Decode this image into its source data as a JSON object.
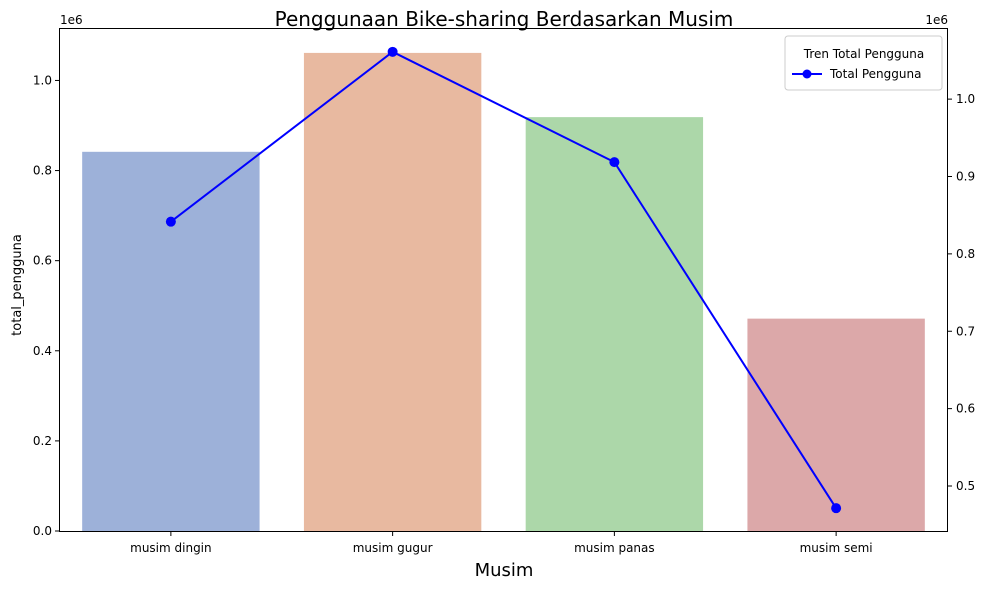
{
  "chart_data": {
    "type": "bar",
    "title": "Penggunaan Bike-sharing Berdasarkan Musim",
    "xlabel": "Musim",
    "ylabel": "total_pengguna",
    "categories": [
      "musim dingin",
      "musim gugur",
      "musim panas",
      "musim semi"
    ],
    "series": [
      {
        "axis": "left",
        "type": "bar",
        "values": [
          841613,
          1061129,
          918589,
          471348
        ],
        "colors": [
          "#9db1d9",
          "#e8b9a0",
          "#acd7a9",
          "#dca8a9"
        ]
      },
      {
        "name": "Total Pengguna",
        "axis": "right",
        "type": "line",
        "marker": "circle",
        "color": "#0000ff",
        "values": [
          841613,
          1061129,
          918589,
          471348
        ]
      }
    ],
    "y_left": {
      "range": [
        0,
        1114185
      ],
      "ticks": [
        0,
        0.2,
        0.4,
        0.6,
        0.8,
        1.0
      ],
      "tick_labels": [
        "0.0",
        "0.2",
        "0.4",
        "0.6",
        "0.8",
        "1.0"
      ],
      "scale_label": "1e6"
    },
    "y_right": {
      "range": [
        441859,
        1090618
      ],
      "ticks": [
        0.5,
        0.6,
        0.7,
        0.8,
        0.9,
        1.0
      ],
      "tick_labels": [
        "0.5",
        "0.6",
        "0.7",
        "0.8",
        "0.9",
        "1.0"
      ],
      "scale_label": "1e6"
    },
    "legend": {
      "title": "Tren Total Pengguna",
      "entries": [
        "Total Pengguna"
      ],
      "position": "top-right"
    },
    "grid": false
  }
}
